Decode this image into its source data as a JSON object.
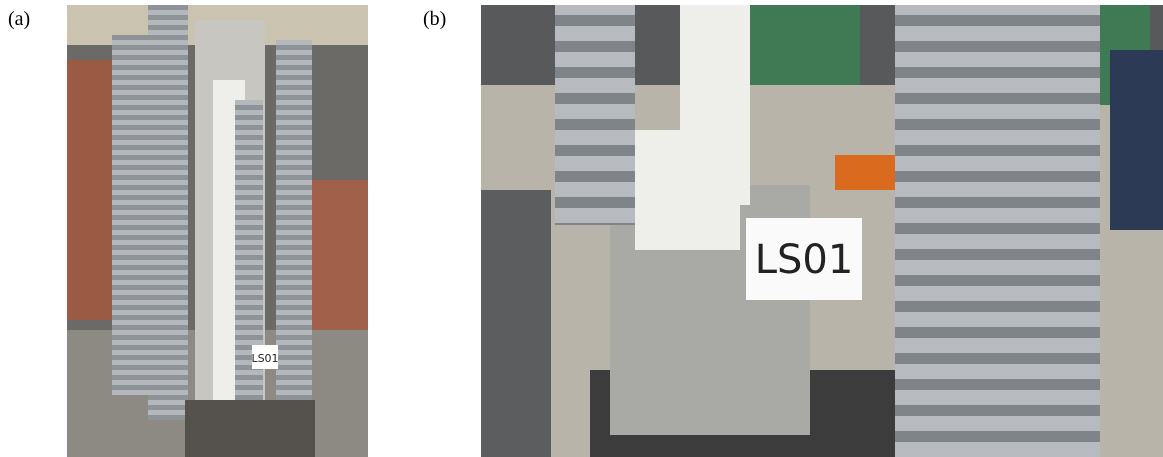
{
  "panels": [
    {
      "label": "(a)",
      "sign": "LS01"
    },
    {
      "label": "(b)",
      "sign": "LS01"
    }
  ]
}
